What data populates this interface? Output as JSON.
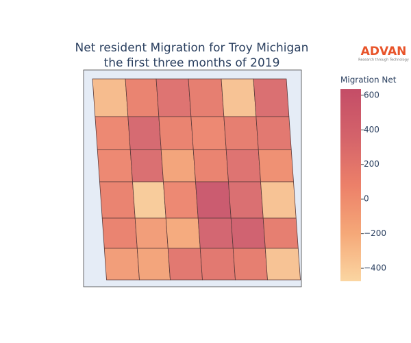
{
  "chart_data": {
    "type": "choropleth",
    "title": "Net resident Migration for Troy Michigan",
    "subtitle": "the first three months of 2019",
    "colorbar_title": "Migration Net",
    "colorscale": [
      "#fbd6a2",
      "#f5a878",
      "#ec8069",
      "#d4636a",
      "#c44d67"
    ],
    "zlim": [
      -475,
      635
    ],
    "zticks": [
      {
        "value": -400,
        "label": "−400"
      },
      {
        "value": -200,
        "label": "−200"
      },
      0,
      200,
      400,
      600
    ],
    "values": [
      -300,
      100,
      250,
      150,
      -350,
      300,
      50,
      350,
      100,
      50,
      150,
      200,
      50,
      300,
      -150,
      100,
      250,
      0,
      100,
      -400,
      50,
      550,
      300,
      -350,
      100,
      -100,
      -200,
      400,
      450,
      150,
      -100,
      -150,
      200,
      200,
      150,
      -350
    ],
    "logo": "ADVAN",
    "logo_tagline": "Research through Technology"
  }
}
